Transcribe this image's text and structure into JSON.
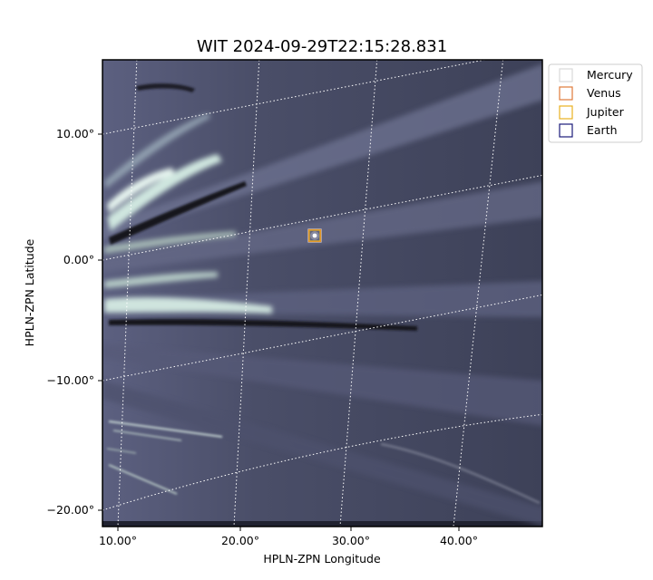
{
  "title": "WIT 2024-09-29T22:15:28.831",
  "xlabel": "HPLN-ZPN Longitude",
  "ylabel": "HPLN-ZPN Latitude",
  "x_ticks": [
    "10.00°",
    "20.00°",
    "30.00°",
    "40.00°"
  ],
  "y_ticks": [
    "10.00°",
    "0.00°",
    "−10.00°",
    "−20.00°"
  ],
  "legend": [
    {
      "label": "Mercury",
      "color": "#d9d9d9"
    },
    {
      "label": "Venus",
      "color": "#e07a3a"
    },
    {
      "label": "Jupiter",
      "color": "#e8b020"
    },
    {
      "label": "Earth",
      "color": "#1a1a7a"
    }
  ],
  "colors": {
    "image_dark": "#3a3e55",
    "image_mid": "#5a5e78",
    "streamer_bright": "#d8ece6",
    "grid": "#ffffff"
  }
}
